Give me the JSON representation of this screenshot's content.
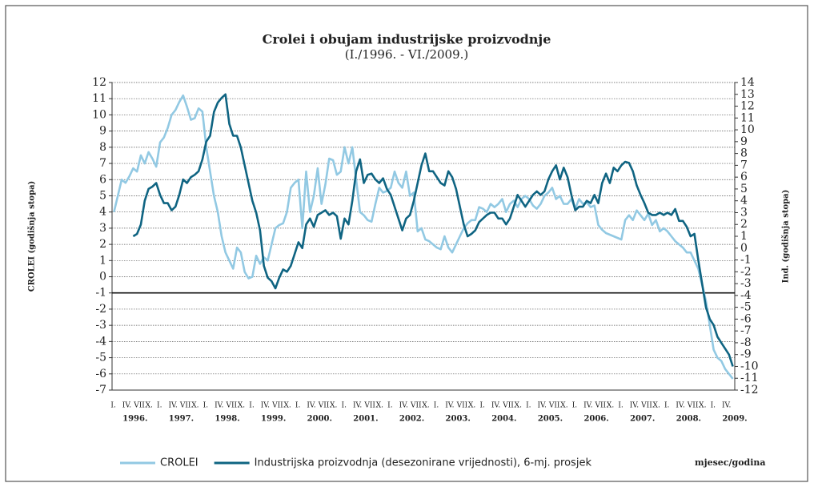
{
  "chart_data": {
    "type": "line",
    "title": "Crolei i obujam industrijske proizvodnje",
    "subtitle": "(I./1996. - VI./2009.)",
    "y_label": "CROLEI (godišnja stopa)",
    "y2_label": "Ind. (godišnja stopa)",
    "x_label": "mjesec/godina",
    "categories": [
      "I.",
      null,
      null,
      "IV.",
      null,
      null,
      "VII.",
      null,
      null,
      "X.",
      null,
      null,
      "I.",
      null,
      null,
      "IV.",
      null,
      null,
      "VII.",
      null,
      null,
      "X.",
      null,
      null,
      "I.",
      null,
      null,
      "IV.",
      null,
      null,
      "VII.",
      null,
      null,
      "X.",
      null,
      null,
      "I.",
      null,
      null,
      "IV.",
      null,
      null,
      "VII.",
      null,
      null,
      "X.",
      null,
      null,
      "I.",
      null,
      null,
      "IV.",
      null,
      null,
      "VII.",
      null,
      null,
      "X.",
      null,
      null,
      "I.",
      null,
      null,
      "IV.",
      null,
      null,
      "VII.",
      null,
      null,
      "X.",
      null,
      null,
      "I.",
      null,
      null,
      "IV.",
      null,
      null,
      "VII.",
      null,
      null,
      "X.",
      null,
      null,
      "I.",
      null,
      null,
      "IV.",
      null,
      null,
      "VII.",
      null,
      null,
      "X.",
      null,
      null,
      "I.",
      null,
      null,
      "IV.",
      null,
      null,
      "VII.",
      null,
      null,
      "X.",
      null,
      null,
      "I.",
      null,
      null,
      "IV.",
      null,
      null,
      "VII.",
      null,
      null,
      "X.",
      null,
      null,
      "I.",
      null,
      null,
      "IV.",
      null,
      null,
      "VII.",
      null,
      null,
      "X.",
      null,
      null,
      "I.",
      null,
      null,
      "IV.",
      null,
      null,
      "VII.",
      null,
      null,
      "X.",
      null,
      null,
      "I.",
      null,
      null,
      "IV.",
      null,
      null,
      "VII.",
      null,
      null,
      "X.",
      null,
      null,
      "I.",
      null,
      null,
      "IV.",
      null,
      null
    ],
    "years": [
      "1996.",
      "1997.",
      "1998.",
      "1999.",
      "2000.",
      "2001.",
      "2002.",
      "2003.",
      "2004.",
      "2005.",
      "2006.",
      "2007.",
      "2008.",
      "2009."
    ],
    "series": [
      {
        "name": "CROLEI",
        "color": "#92c9e3",
        "values": [
          4,
          5,
          6,
          5.8,
          6.2,
          6.7,
          6.5,
          7.5,
          7,
          7.7,
          7.3,
          6.8,
          8.3,
          8.6,
          9.2,
          10,
          10.3,
          10.8,
          11.2,
          10.5,
          9.7,
          9.8,
          10.4,
          10.2,
          8,
          6.5,
          5,
          4,
          2.5,
          1.5,
          1,
          0.5,
          1.8,
          1.5,
          0.3,
          -0.1,
          0,
          1.3,
          0.8,
          1.2,
          1,
          2,
          3,
          3.2,
          3.3,
          4,
          5.5,
          5.8,
          6,
          3,
          6.5,
          4,
          5,
          6.7,
          4.5,
          5.7,
          7.3,
          7.2,
          6.3,
          6.5,
          8,
          7,
          8,
          6,
          4,
          3.8,
          3.5,
          3.4,
          4.5,
          5.5,
          5.2,
          5.3,
          5.5,
          6.5,
          5.8,
          5.5,
          6.5,
          5,
          5.2,
          2.8,
          3,
          2.3,
          2.2,
          2,
          1.8,
          1.7,
          2.5,
          1.8,
          1.5,
          2,
          2.5,
          3,
          3.3,
          3.5,
          3.5,
          4.3,
          4.2,
          4,
          4.5,
          4.3,
          4.5,
          4.8,
          4,
          4.5,
          4.7,
          4.3,
          4.8,
          5,
          4.8,
          4.4,
          4.2,
          4.5,
          5,
          5.2,
          5.5,
          4.8,
          5,
          4.5,
          4.5,
          4.8,
          4.2,
          4.8,
          4.5,
          4.6,
          4.3,
          4.4,
          3.2,
          2.9,
          2.7,
          2.6,
          2.5,
          2.4,
          2.3,
          3.5,
          3.8,
          3.5,
          4.1,
          3.8,
          3.5,
          3.9,
          3.2,
          3.5,
          2.8,
          3,
          2.8,
          2.5,
          2.2,
          2,
          1.8,
          1.5,
          1.5,
          1,
          0.5,
          -0.5,
          -1.5,
          -3,
          -4.5,
          -5,
          -5.2,
          -5.7,
          -6,
          -6.3
        ]
      },
      {
        "name": "Industrijska proizvodnja (desezonirane vrijednosti), 6-mj. prosjek",
        "color": "#0f6482",
        "axis": "y2",
        "values": [
          null,
          null,
          null,
          null,
          null,
          1,
          1.2,
          2,
          4,
          5,
          5.2,
          5.5,
          4.5,
          3.8,
          3.8,
          3.2,
          3.5,
          4.5,
          5.8,
          5.5,
          6,
          6.2,
          6.5,
          7.5,
          9,
          9.5,
          11.5,
          12.3,
          12.7,
          13,
          10.5,
          9.5,
          9.5,
          8.5,
          7,
          5.5,
          4,
          3,
          1.5,
          -1.5,
          -2.5,
          -2.8,
          -3.4,
          -2.5,
          -1.8,
          -2,
          -1.5,
          -0.5,
          0.5,
          0,
          2,
          2.5,
          1.8,
          2.8,
          3,
          3.2,
          2.8,
          3,
          2.7,
          0.8,
          2.5,
          2,
          4,
          6.5,
          7.5,
          5.5,
          6.2,
          6.3,
          5.8,
          5.5,
          5.9,
          5,
          4.5,
          3.5,
          2.5,
          1.5,
          2.5,
          2.8,
          4,
          5.5,
          7,
          8,
          6.5,
          6.5,
          6,
          5.5,
          5.3,
          6.5,
          6,
          5,
          3.5,
          2,
          1,
          1.2,
          1.5,
          2.2,
          2.5,
          2.8,
          3,
          3,
          2.5,
          2.5,
          2,
          2.5,
          3.5,
          4.5,
          4,
          3.5,
          4,
          4.5,
          4.8,
          4.5,
          4.8,
          5.8,
          6.5,
          7,
          5.8,
          6.8,
          6,
          4.5,
          3.2,
          3.5,
          3.5,
          4,
          3.8,
          4.5,
          3.8,
          5.5,
          6.3,
          5.5,
          6.8,
          6.5,
          7,
          7.3,
          7.2,
          6.5,
          5.3,
          4.5,
          3.8,
          3,
          2.8,
          2.8,
          3,
          2.8,
          3,
          2.8,
          3.3,
          2.3,
          2.3,
          1.8,
          1,
          1.2,
          -1,
          -3,
          -5,
          -6,
          -6.5,
          -7.5,
          -8,
          -8.5,
          -9,
          -10
        ]
      }
    ],
    "ylim": [
      -7,
      12
    ],
    "yticks": [
      -7,
      -6,
      -5,
      -4,
      -3,
      -2,
      -1,
      0,
      1,
      2,
      3,
      4,
      5,
      6,
      7,
      8,
      9,
      10,
      11,
      12
    ],
    "y2lim": [
      -12,
      14
    ],
    "y2ticks": [
      -12,
      -11,
      -10,
      -9,
      -8,
      -7,
      -6,
      -5,
      -4,
      -3,
      -2,
      -1,
      0,
      1,
      2,
      3,
      4,
      5,
      6,
      7,
      8,
      9,
      10,
      11,
      12,
      13,
      14
    ],
    "baseline": -1,
    "grid": true,
    "legend": "bottom"
  }
}
